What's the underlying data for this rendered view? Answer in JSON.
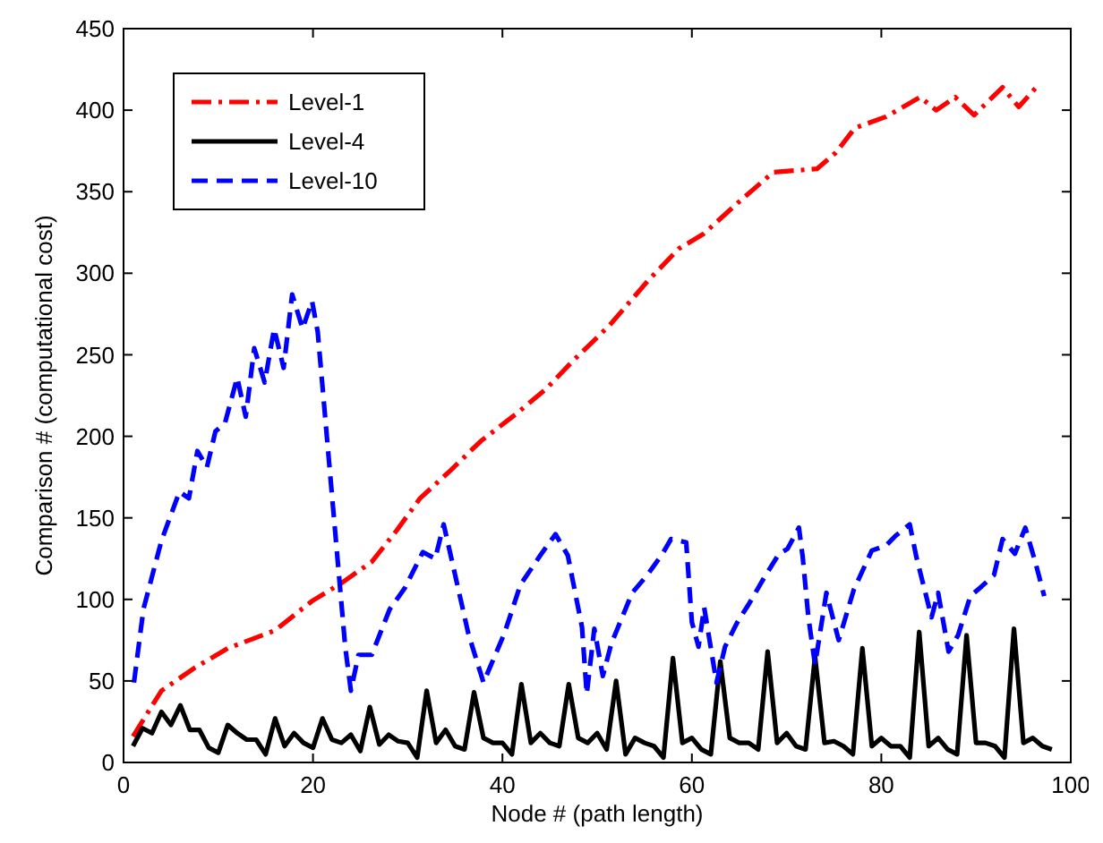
{
  "chart_data": {
    "type": "line",
    "xlabel": "Node # (path length)",
    "ylabel": "Comparison # (computational cost)",
    "xlim": [
      0,
      100
    ],
    "xticks": [
      0,
      20,
      40,
      60,
      80,
      100
    ],
    "ylim": [
      0,
      450
    ],
    "yticks": [
      0,
      50,
      100,
      150,
      200,
      250,
      300,
      350,
      400,
      450
    ],
    "grid": false,
    "legend": "top left",
    "series": [
      {
        "name": "Level-1",
        "color": "#ff0000",
        "line_style": "dashdot",
        "x": [
          1,
          4,
          7.5,
          11,
          16,
          19.9,
          23,
          26.2,
          28.8,
          31.3,
          34.5,
          37.7,
          41.5,
          44.6,
          47.4,
          51.3,
          55.3,
          58.6,
          61.2,
          65.2,
          68.6,
          73.2,
          75.2,
          77.2,
          80.5,
          84.1,
          85.8,
          87.8,
          89.8,
          92.8,
          94.5,
          96.5
        ],
        "values": [
          16,
          44,
          58,
          70,
          81,
          99,
          110,
          123,
          142,
          162,
          179,
          197,
          214,
          229,
          246,
          268,
          295,
          315,
          324,
          345,
          362,
          364,
          374,
          389,
          396,
          408,
          400,
          408,
          397,
          414,
          402,
          415
        ]
      },
      {
        "name": "Level-4",
        "color": "#000000",
        "line_style": "solid",
        "x": [
          1,
          2,
          3,
          4,
          5,
          6,
          7,
          8,
          9,
          10,
          11,
          12,
          13,
          14,
          15,
          16,
          17,
          18,
          19,
          20,
          21,
          22,
          23,
          24,
          25,
          26,
          27,
          28,
          29,
          30,
          31,
          32,
          33,
          34,
          35,
          36,
          37,
          38,
          39,
          40,
          41,
          42,
          43,
          44,
          45,
          46,
          47,
          48,
          49,
          50,
          51,
          52,
          53,
          54,
          55,
          56,
          57,
          58,
          59,
          60,
          61,
          62,
          63,
          64,
          65,
          66,
          67,
          68,
          69,
          70,
          71,
          72,
          73,
          74,
          75,
          76,
          77,
          78,
          79,
          80,
          81,
          82,
          83,
          84,
          85,
          86,
          87,
          88,
          89,
          90,
          91,
          92,
          93,
          94,
          95,
          96,
          97,
          98
        ],
        "values": [
          10,
          21,
          18,
          31,
          23,
          35,
          20,
          20,
          9,
          6,
          23,
          18,
          14,
          14,
          5,
          27,
          10,
          18,
          12,
          9,
          27,
          14,
          12,
          17,
          7,
          34,
          11,
          17,
          13,
          12,
          3,
          44,
          12,
          20,
          10,
          8,
          43,
          15,
          12,
          12,
          5,
          48,
          12,
          18,
          12,
          10,
          48,
          15,
          12,
          18,
          8,
          50,
          5,
          15,
          12,
          10,
          3,
          64,
          12,
          15,
          8,
          5,
          62,
          15,
          12,
          12,
          8,
          68,
          12,
          18,
          10,
          8,
          65,
          12,
          13,
          10,
          5,
          70,
          10,
          15,
          10,
          10,
          3,
          80,
          10,
          15,
          8,
          5,
          78,
          12,
          12,
          10,
          3,
          82,
          12,
          15,
          10,
          8
        ]
      },
      {
        "name": "Level-10",
        "color": "#0000ff",
        "line_style": "dashed",
        "x": [
          1.1,
          2.1,
          4,
          5.9,
          6.9,
          7.8,
          8.8,
          9.7,
          10.7,
          12,
          12.9,
          13.8,
          14.9,
          15.9,
          16.9,
          17.8,
          18.9,
          19.9,
          20.5,
          23.4,
          24,
          24.8,
          26.2,
          28.1,
          29.7,
          31.6,
          32.9,
          33.8,
          36.4,
          38,
          40.2,
          41.9,
          44,
          45.6,
          46.9,
          48.4,
          48.9,
          49.7,
          50.6,
          51.5,
          53.7,
          55.3,
          56.9,
          57.8,
          59.4,
          60,
          60.7,
          61.3,
          62.6,
          63.5,
          64.8,
          66,
          67.6,
          69.2,
          70.1,
          71.3,
          71.7,
          72.3,
          73,
          74.2,
          75.5,
          77.1,
          79,
          80.5,
          81.5,
          83,
          83.7,
          85.3,
          86,
          87.1,
          88.1,
          89.4,
          90.6,
          91.9,
          92.8,
          94.1,
          95.2,
          96.3,
          97.2
        ],
        "values": [
          49,
          94,
          136,
          166,
          162,
          191,
          181,
          203,
          208,
          236,
          212,
          254,
          233,
          266,
          242,
          287,
          266,
          283,
          264,
          71,
          44,
          66,
          66,
          94,
          107,
          129,
          125,
          146,
          79,
          49,
          79,
          109,
          127,
          140,
          127,
          83,
          42,
          82,
          53,
          73,
          104,
          115,
          128,
          137,
          135,
          86,
          71,
          95,
          49,
          71,
          86,
          97,
          113,
          128,
          131,
          144,
          126,
          89,
          60,
          104,
          75,
          106,
          130,
          133,
          139,
          146,
          126,
          89,
          104,
          68,
          78,
          102,
          108,
          115,
          137,
          128,
          144,
          122,
          102
        ]
      }
    ]
  }
}
